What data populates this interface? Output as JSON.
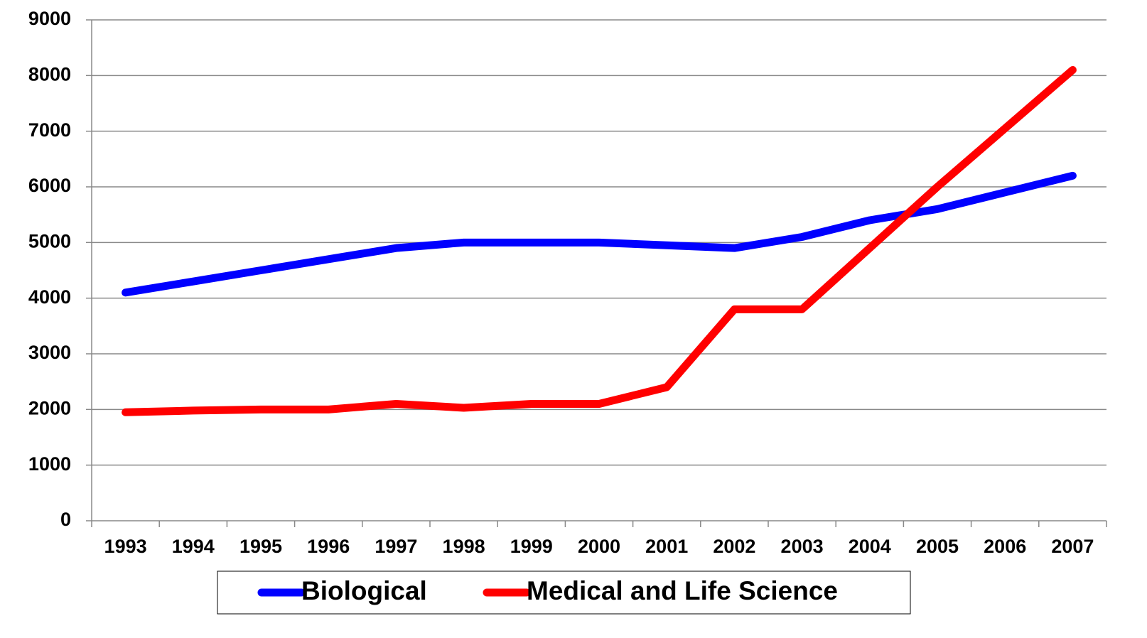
{
  "chart_data": {
    "type": "line",
    "categories": [
      "1993",
      "1994",
      "1995",
      "1996",
      "1997",
      "1998",
      "1999",
      "2000",
      "2001",
      "2002",
      "2003",
      "2004",
      "2005",
      "2006",
      "2007"
    ],
    "series": [
      {
        "name": "Biological",
        "color": "#0000ff",
        "values": [
          4100,
          4300,
          4500,
          4700,
          4900,
          5000,
          5000,
          5000,
          4950,
          4900,
          5100,
          5400,
          5600,
          5900,
          6200
        ]
      },
      {
        "name": "Medical and Life Science",
        "color": "#ff0000",
        "values": [
          1950,
          1980,
          2000,
          2000,
          2100,
          2030,
          2100,
          2100,
          2400,
          3800,
          3800,
          4900,
          6000,
          7050,
          8100
        ]
      }
    ],
    "ylim": [
      0,
      9000
    ],
    "yticks": [
      0,
      1000,
      2000,
      3000,
      4000,
      5000,
      6000,
      7000,
      8000,
      9000
    ],
    "grid": true,
    "legend": "bottom"
  }
}
